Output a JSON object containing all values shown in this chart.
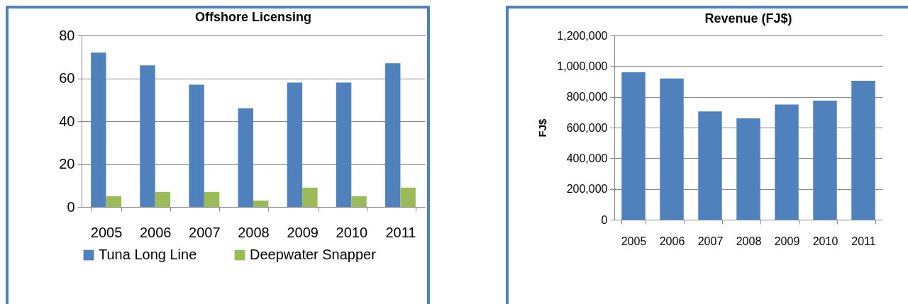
{
  "chart_data": [
    {
      "type": "bar",
      "title": "Offshore Licensing",
      "categories": [
        "2005",
        "2006",
        "2007",
        "2008",
        "2009",
        "2010",
        "2011"
      ],
      "series": [
        {
          "name": "Tuna Long Line",
          "color": "#4f81bd",
          "values": [
            72,
            66,
            57,
            46,
            58,
            58,
            67
          ]
        },
        {
          "name": "Deepwater Snapper",
          "color": "#9bbb59",
          "values": [
            5,
            7,
            7,
            3,
            9,
            5,
            9
          ]
        }
      ],
      "ylim": [
        0,
        80
      ],
      "yticks": [
        0,
        20,
        40,
        60,
        80
      ],
      "grid": "y",
      "legend": "bottom"
    },
    {
      "type": "bar",
      "title": "Revenue (FJ$)",
      "ylabel": "FJ$",
      "categories": [
        "2005",
        "2006",
        "2007",
        "2008",
        "2009",
        "2010",
        "2011"
      ],
      "series": [
        {
          "color": "#4f81bd",
          "values": [
            960000,
            920000,
            705000,
            660000,
            750000,
            775000,
            905000
          ]
        }
      ],
      "ylim": [
        0,
        1200000
      ],
      "yticks": [
        0,
        {
          "value": 200000,
          "label": "200,000"
        },
        {
          "value": 400000,
          "label": "400,000"
        },
        {
          "value": 600000,
          "label": "600,000"
        },
        {
          "value": 800000,
          "label": "800,000"
        },
        {
          "value": 1000000,
          "label": "1,000,000"
        },
        {
          "value": 1200000,
          "label": "1,200,000"
        }
      ],
      "grid": "y"
    }
  ]
}
